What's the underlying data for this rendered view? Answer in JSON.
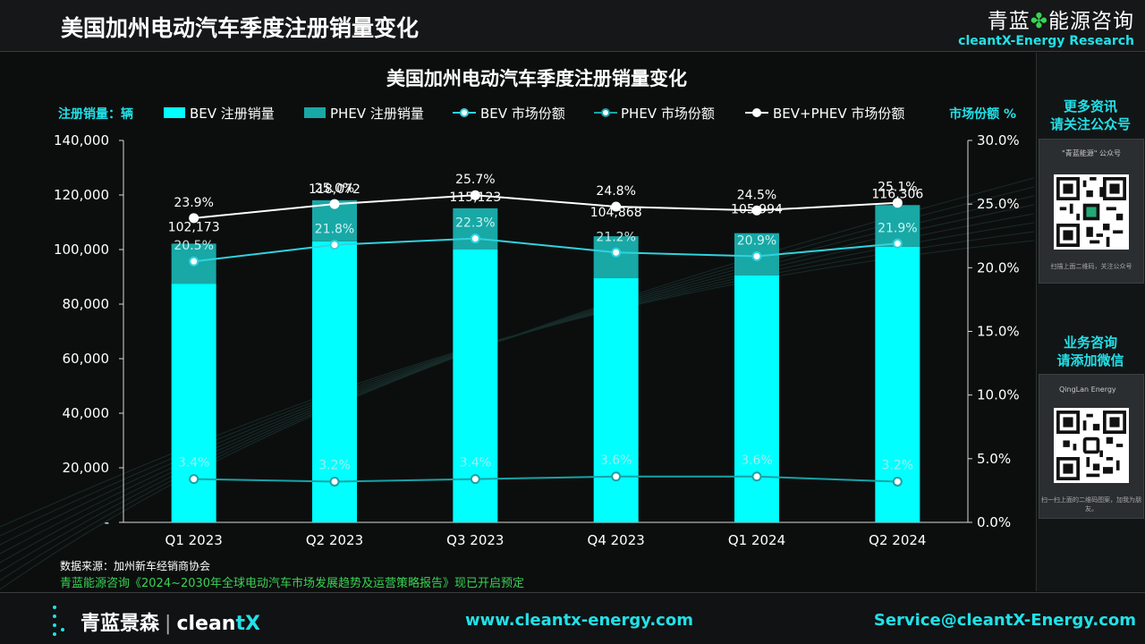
{
  "header": {
    "title": "美国加州电动汽车季度注册销量变化",
    "brand_cn_left": "青蓝",
    "brand_cn_clover": "✤",
    "brand_cn_right": "能源咨询",
    "brand_en": "cleantX-Energy Research"
  },
  "sidebar": {
    "block1_title_line1": "更多资讯",
    "block1_title_line2": "请关注公众号",
    "block1_caption": "\"青蓝能源\" 公众号",
    "block1_foot": "扫描上面二维码，关注公众号",
    "block2_title_line1": "业务咨询",
    "block2_title_line2": "请添加微信",
    "block2_caption": "QingLan Energy",
    "block2_foot": "扫一扫上面的二维码图案，加我为朋友。"
  },
  "source_note": "数据来源：加州新车经销商协会",
  "promo_note": "青蓝能源咨询《2024~2030年全球电动汽车市场发展趋势及运营策略报告》现已开启预定",
  "footer": {
    "logo_cn": "青蓝景森",
    "logo_sep": "|",
    "logo_en_a": "clean",
    "logo_en_b": "tX",
    "website": "www.cleantx-energy.com",
    "email": "Service@cleantX-Energy.com"
  },
  "colors": {
    "bev": "#00ffff",
    "phev": "#18a8a6",
    "bev_share": "#2fd3dd",
    "phev_share": "#17a3a6",
    "total_share": "#ffffff",
    "accent": "#21e1e8"
  },
  "chart_data": {
    "type": "bar",
    "title": "美国加州电动汽车季度注册销量变化",
    "ylabel_left": "注册销量：辆",
    "ylabel_right": "市场份额 %",
    "categories": [
      "Q1 2023",
      "Q2 2023",
      "Q3 2023",
      "Q4 2023",
      "Q1 2024",
      "Q2 2024"
    ],
    "stacked_series": [
      {
        "name": "BEV 注册销量",
        "values": [
          87500,
          103000,
          100000,
          89500,
          90500,
          101000
        ]
      },
      {
        "name": "PHEV 注册销量",
        "values": [
          14673,
          15072,
          15123,
          15368,
          15494,
          15306
        ]
      }
    ],
    "totals": [
      102173,
      118072,
      115123,
      104868,
      105994,
      116306
    ],
    "total_labels": [
      "102,173",
      "118,072",
      "115,123",
      "104,868",
      "105,994",
      "116,306"
    ],
    "line_series": [
      {
        "name": "BEV 市场份额",
        "values": [
          20.5,
          21.8,
          22.3,
          21.2,
          20.9,
          21.9
        ],
        "labels": [
          "20.5%",
          "21.8%",
          "22.3%",
          "21.2%",
          "20.9%",
          "21.9%"
        ]
      },
      {
        "name": "PHEV 市场份额",
        "values": [
          3.4,
          3.2,
          3.4,
          3.6,
          3.6,
          3.2
        ],
        "labels": [
          "3.4%",
          "3.2%",
          "3.4%",
          "3.6%",
          "3.6%",
          "3.2%"
        ]
      },
      {
        "name": "BEV+PHEV  市场份额",
        "values": [
          23.9,
          25.0,
          25.7,
          24.8,
          24.5,
          25.1
        ],
        "labels": [
          "23.9%",
          "25.0%",
          "25.7%",
          "24.8%",
          "24.5%",
          "25.1%"
        ]
      }
    ],
    "ylim_left": [
      0,
      140000
    ],
    "ylim_right": [
      0,
      30
    ],
    "left_ticks": [
      "-",
      "20,000",
      "40,000",
      "60,000",
      "80,000",
      "100,000",
      "120,000",
      "140,000"
    ],
    "right_ticks": [
      "0.0%",
      "5.0%",
      "10.0%",
      "15.0%",
      "20.0%",
      "25.0%",
      "30.0%"
    ],
    "grid": false,
    "legend": "top"
  }
}
